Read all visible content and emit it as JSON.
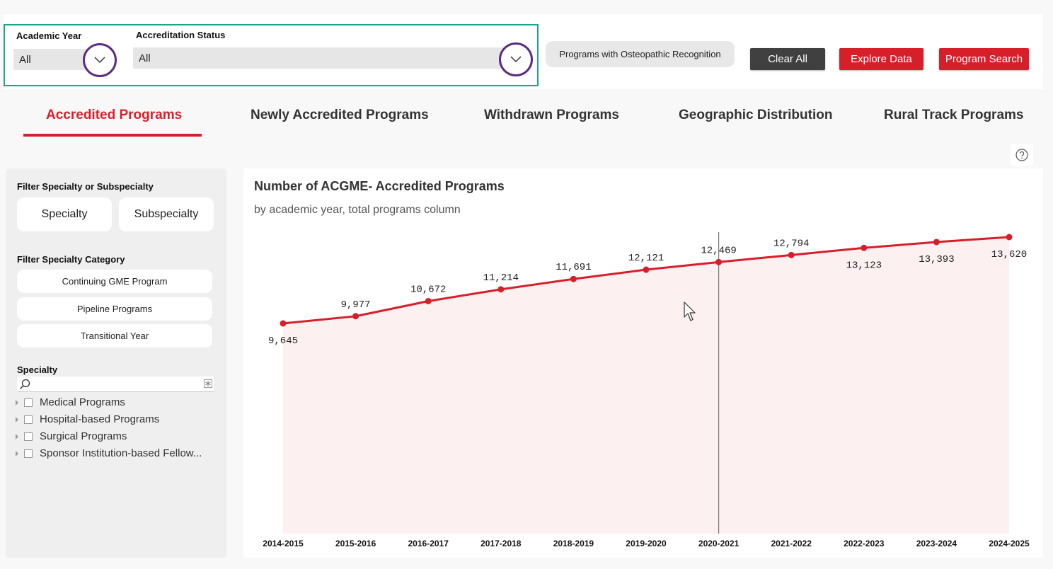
{
  "filters": {
    "academic_year": {
      "label": "Academic Year",
      "value": "All"
    },
    "accreditation_status": {
      "label": "Accreditation Status",
      "value": "All"
    }
  },
  "buttons": {
    "osteopathic": "Programs with Osteopathic Recognition",
    "clear_all": "Clear All",
    "explore_data": "Explore Data",
    "program_search": "Program Search"
  },
  "tabs": [
    {
      "label": "Accredited Programs",
      "active": true
    },
    {
      "label": "Newly Accredited Programs",
      "active": false
    },
    {
      "label": "Withdrawn Programs",
      "active": false
    },
    {
      "label": "Geographic Distribution",
      "active": false
    },
    {
      "label": "Rural Track Programs",
      "active": false
    }
  ],
  "sidebar": {
    "filter_specialty_heading": "Filter Specialty or Subspecialty",
    "specialty_btn": "Specialty",
    "subspecialty_btn": "Subspecialty",
    "filter_category_heading": "Filter Specialty Category",
    "categories": [
      "Continuing GME Program",
      "Pipeline Programs",
      "Transitional Year"
    ],
    "specialty_heading": "Specialty",
    "tree_items": [
      "Medical Programs",
      "Hospital-based Programs",
      "Surgical Programs",
      "Sponsor Institution-based Fellow..."
    ]
  },
  "chart_data": {
    "type": "area",
    "title": "Number of ACGME- Accredited Programs",
    "subtitle": "by academic year, total programs column",
    "categories": [
      "2014-2015",
      "2015-2016",
      "2016-2017",
      "2017-2018",
      "2018-2019",
      "2019-2020",
      "2020-2021",
      "2021-2022",
      "2022-2023",
      "2023-2024",
      "2024-2025"
    ],
    "values": [
      9645,
      9977,
      10672,
      11214,
      11691,
      12121,
      12469,
      12794,
      13123,
      13393,
      13620
    ],
    "data_labels": [
      "9,645",
      "9,977",
      "10,672",
      "11,214",
      "11,691",
      "12,121",
      "12,469",
      "12,794",
      "13,123",
      "13,393",
      "13,620"
    ],
    "highlight_category": "2020-2021",
    "line_color": "#d71f2a",
    "fill_color": "#fcf0f1"
  },
  "colors": {
    "accent": "#d71f2a",
    "dark_button": "#404040",
    "highlight_border": "#1aa58a",
    "dropdown_circle": "#5a2d82"
  }
}
